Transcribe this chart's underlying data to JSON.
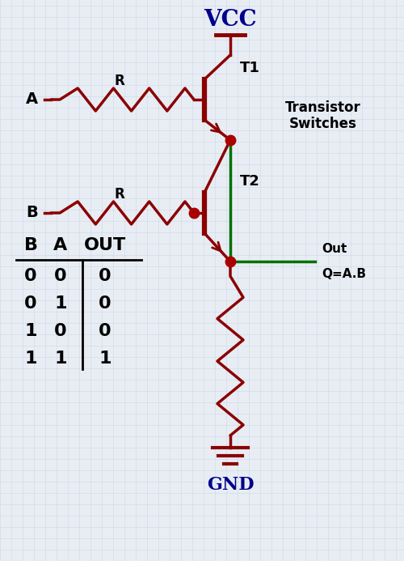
{
  "bg_color": "#e8edf4",
  "grid_color": "#c0cfe0",
  "dark_red": "#8B0000",
  "green": "#007000",
  "dot_color": "#AA0000",
  "text_color": "#00008B",
  "title": "VCC",
  "gnd_label": "GND",
  "t1_label": "T1",
  "t2_label": "T2",
  "label_a": "A",
  "label_b": "B",
  "r_label": "R",
  "out_label": "Out",
  "q_label": "Q=A.B",
  "ts_line1": "Transistor",
  "ts_line2": "Switches",
  "truth_headers": [
    "B",
    "A",
    "OUT"
  ],
  "truth_rows": [
    [
      "0",
      "0",
      "0"
    ],
    [
      "0",
      "1",
      "0"
    ],
    [
      "1",
      "0",
      "0"
    ],
    [
      "1",
      "1",
      "1"
    ]
  ]
}
